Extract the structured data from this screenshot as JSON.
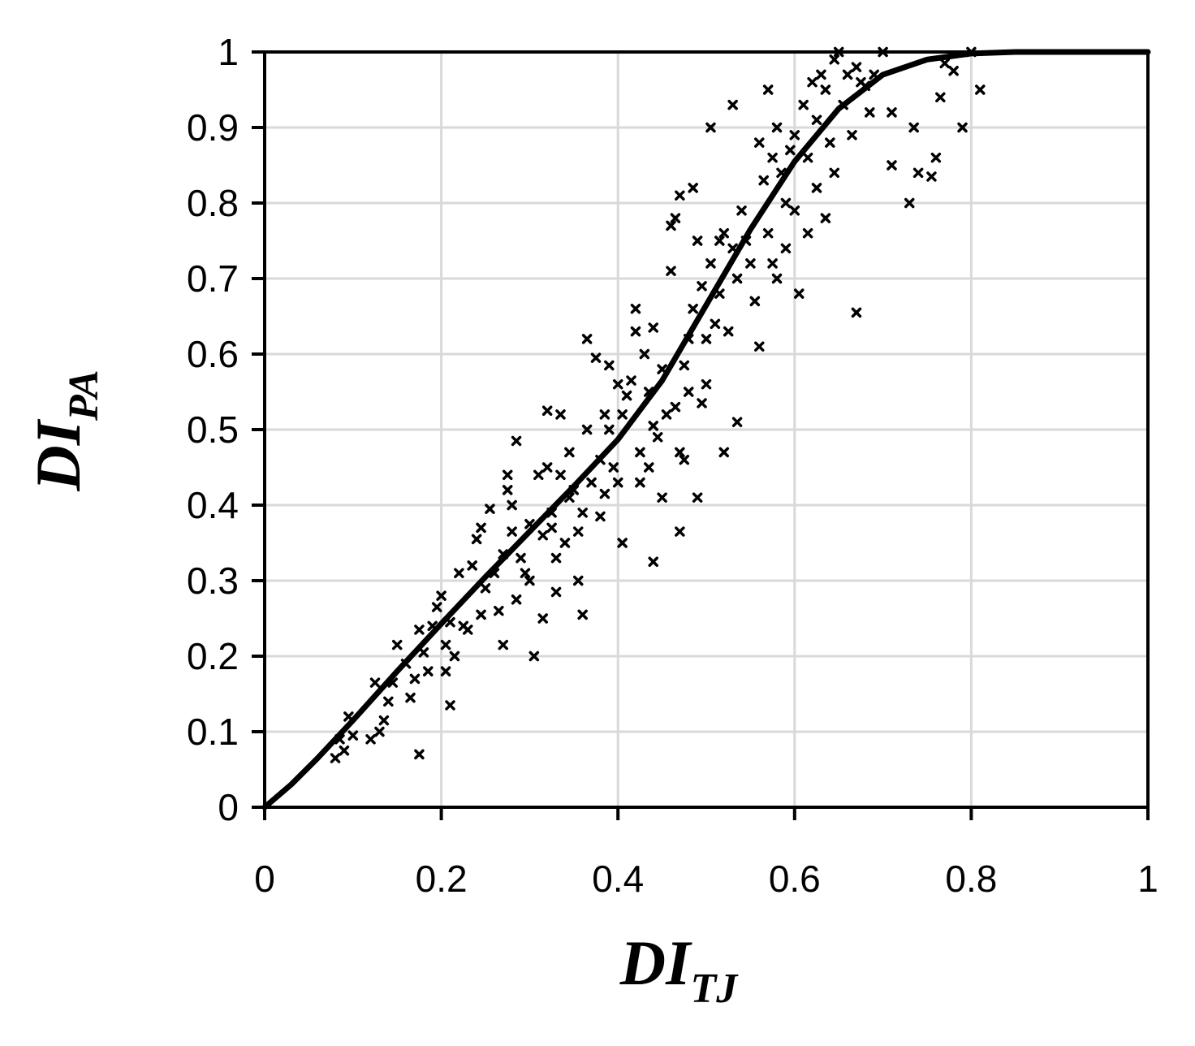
{
  "chart_data": {
    "type": "scatter",
    "xlabel": {
      "main": "DI",
      "sub": "TJ"
    },
    "ylabel": {
      "main": "DI",
      "sub": "PA"
    },
    "xlim": [
      0,
      1
    ],
    "ylim": [
      0,
      1
    ],
    "x_ticks": [
      "0",
      "0.2",
      "0.4",
      "0.6",
      "0.8",
      "1"
    ],
    "y_ticks": [
      "0",
      "0.1",
      "0.2",
      "0.3",
      "0.4",
      "0.5",
      "0.6",
      "0.7",
      "0.8",
      "0.9",
      "1"
    ],
    "grid": true,
    "marker": "x",
    "colors": {
      "points": "#000000",
      "curve": "#000000",
      "grid": "#d9d9d9"
    },
    "curve": {
      "x": [
        0,
        0.03,
        0.06,
        0.1,
        0.15,
        0.2,
        0.25,
        0.3,
        0.35,
        0.4,
        0.45,
        0.5,
        0.55,
        0.6,
        0.65,
        0.7,
        0.75,
        0.8,
        0.85,
        0.9,
        1.0
      ],
      "y": [
        0,
        0.03,
        0.065,
        0.115,
        0.18,
        0.243,
        0.305,
        0.365,
        0.425,
        0.487,
        0.565,
        0.665,
        0.765,
        0.855,
        0.925,
        0.97,
        0.99,
        0.998,
        1.0,
        1.0,
        1.0
      ]
    },
    "points": [
      [
        0.08,
        0.065
      ],
      [
        0.085,
        0.09
      ],
      [
        0.09,
        0.075
      ],
      [
        0.095,
        0.12
      ],
      [
        0.1,
        0.095
      ],
      [
        0.12,
        0.09
      ],
      [
        0.125,
        0.165
      ],
      [
        0.13,
        0.1
      ],
      [
        0.135,
        0.115
      ],
      [
        0.14,
        0.14
      ],
      [
        0.145,
        0.165
      ],
      [
        0.15,
        0.215
      ],
      [
        0.16,
        0.19
      ],
      [
        0.165,
        0.145
      ],
      [
        0.17,
        0.17
      ],
      [
        0.175,
        0.235
      ],
      [
        0.175,
        0.07
      ],
      [
        0.18,
        0.205
      ],
      [
        0.185,
        0.18
      ],
      [
        0.19,
        0.24
      ],
      [
        0.195,
        0.265
      ],
      [
        0.2,
        0.28
      ],
      [
        0.205,
        0.18
      ],
      [
        0.205,
        0.215
      ],
      [
        0.21,
        0.245
      ],
      [
        0.21,
        0.135
      ],
      [
        0.215,
        0.2
      ],
      [
        0.22,
        0.31
      ],
      [
        0.225,
        0.24
      ],
      [
        0.23,
        0.235
      ],
      [
        0.235,
        0.32
      ],
      [
        0.24,
        0.355
      ],
      [
        0.245,
        0.255
      ],
      [
        0.245,
        0.37
      ],
      [
        0.25,
        0.29
      ],
      [
        0.255,
        0.395
      ],
      [
        0.26,
        0.31
      ],
      [
        0.265,
        0.26
      ],
      [
        0.27,
        0.335
      ],
      [
        0.27,
        0.215
      ],
      [
        0.275,
        0.42
      ],
      [
        0.275,
        0.44
      ],
      [
        0.28,
        0.365
      ],
      [
        0.28,
        0.4
      ],
      [
        0.285,
        0.275
      ],
      [
        0.285,
        0.485
      ],
      [
        0.29,
        0.33
      ],
      [
        0.295,
        0.31
      ],
      [
        0.3,
        0.375
      ],
      [
        0.3,
        0.3
      ],
      [
        0.305,
        0.2
      ],
      [
        0.31,
        0.44
      ],
      [
        0.315,
        0.36
      ],
      [
        0.315,
        0.25
      ],
      [
        0.32,
        0.525
      ],
      [
        0.32,
        0.45
      ],
      [
        0.325,
        0.39
      ],
      [
        0.325,
        0.37
      ],
      [
        0.33,
        0.33
      ],
      [
        0.33,
        0.285
      ],
      [
        0.335,
        0.44
      ],
      [
        0.335,
        0.52
      ],
      [
        0.34,
        0.35
      ],
      [
        0.345,
        0.41
      ],
      [
        0.345,
        0.47
      ],
      [
        0.35,
        0.42
      ],
      [
        0.355,
        0.3
      ],
      [
        0.355,
        0.365
      ],
      [
        0.36,
        0.255
      ],
      [
        0.36,
        0.39
      ],
      [
        0.365,
        0.5
      ],
      [
        0.365,
        0.62
      ],
      [
        0.37,
        0.43
      ],
      [
        0.375,
        0.595
      ],
      [
        0.38,
        0.385
      ],
      [
        0.38,
        0.46
      ],
      [
        0.385,
        0.52
      ],
      [
        0.385,
        0.415
      ],
      [
        0.39,
        0.585
      ],
      [
        0.39,
        0.5
      ],
      [
        0.395,
        0.45
      ],
      [
        0.4,
        0.56
      ],
      [
        0.4,
        0.43
      ],
      [
        0.405,
        0.35
      ],
      [
        0.405,
        0.52
      ],
      [
        0.41,
        0.545
      ],
      [
        0.415,
        0.565
      ],
      [
        0.42,
        0.66
      ],
      [
        0.42,
        0.63
      ],
      [
        0.425,
        0.43
      ],
      [
        0.425,
        0.47
      ],
      [
        0.43,
        0.6
      ],
      [
        0.435,
        0.55
      ],
      [
        0.435,
        0.45
      ],
      [
        0.44,
        0.505
      ],
      [
        0.44,
        0.635
      ],
      [
        0.44,
        0.325
      ],
      [
        0.445,
        0.49
      ],
      [
        0.45,
        0.41
      ],
      [
        0.45,
        0.58
      ],
      [
        0.455,
        0.52
      ],
      [
        0.46,
        0.71
      ],
      [
        0.46,
        0.77
      ],
      [
        0.465,
        0.78
      ],
      [
        0.465,
        0.53
      ],
      [
        0.47,
        0.81
      ],
      [
        0.47,
        0.47
      ],
      [
        0.47,
        0.365
      ],
      [
        0.475,
        0.585
      ],
      [
        0.475,
        0.46
      ],
      [
        0.48,
        0.55
      ],
      [
        0.48,
        0.62
      ],
      [
        0.485,
        0.66
      ],
      [
        0.485,
        0.82
      ],
      [
        0.49,
        0.75
      ],
      [
        0.49,
        0.41
      ],
      [
        0.495,
        0.69
      ],
      [
        0.495,
        0.535
      ],
      [
        0.5,
        0.56
      ],
      [
        0.5,
        0.62
      ],
      [
        0.505,
        0.72
      ],
      [
        0.505,
        0.9
      ],
      [
        0.51,
        0.64
      ],
      [
        0.515,
        0.75
      ],
      [
        0.515,
        0.68
      ],
      [
        0.52,
        0.47
      ],
      [
        0.52,
        0.76
      ],
      [
        0.525,
        0.63
      ],
      [
        0.53,
        0.93
      ],
      [
        0.53,
        0.74
      ],
      [
        0.535,
        0.7
      ],
      [
        0.535,
        0.51
      ],
      [
        0.54,
        0.79
      ],
      [
        0.545,
        0.75
      ],
      [
        0.55,
        0.72
      ],
      [
        0.555,
        0.67
      ],
      [
        0.56,
        0.88
      ],
      [
        0.56,
        0.61
      ],
      [
        0.565,
        0.83
      ],
      [
        0.57,
        0.95
      ],
      [
        0.57,
        0.76
      ],
      [
        0.575,
        0.86
      ],
      [
        0.575,
        0.72
      ],
      [
        0.58,
        0.9
      ],
      [
        0.58,
        0.7
      ],
      [
        0.585,
        0.84
      ],
      [
        0.59,
        0.8
      ],
      [
        0.59,
        0.74
      ],
      [
        0.595,
        0.87
      ],
      [
        0.6,
        0.89
      ],
      [
        0.6,
        0.79
      ],
      [
        0.605,
        0.68
      ],
      [
        0.61,
        0.93
      ],
      [
        0.615,
        0.86
      ],
      [
        0.615,
        0.76
      ],
      [
        0.62,
        0.96
      ],
      [
        0.625,
        0.82
      ],
      [
        0.625,
        0.91
      ],
      [
        0.63,
        0.97
      ],
      [
        0.635,
        0.78
      ],
      [
        0.635,
        0.95
      ],
      [
        0.64,
        0.88
      ],
      [
        0.645,
        0.99
      ],
      [
        0.645,
        0.84
      ],
      [
        0.65,
        1.0
      ],
      [
        0.655,
        0.93
      ],
      [
        0.66,
        0.97
      ],
      [
        0.665,
        0.89
      ],
      [
        0.67,
        0.98
      ],
      [
        0.67,
        0.655
      ],
      [
        0.675,
        0.96
      ],
      [
        0.68,
        0.955
      ],
      [
        0.685,
        0.92
      ],
      [
        0.69,
        0.97
      ],
      [
        0.7,
        1.0
      ],
      [
        0.71,
        0.92
      ],
      [
        0.71,
        0.85
      ],
      [
        0.73,
        0.8
      ],
      [
        0.735,
        0.9
      ],
      [
        0.74,
        0.84
      ],
      [
        0.755,
        0.835
      ],
      [
        0.76,
        0.86
      ],
      [
        0.765,
        0.94
      ],
      [
        0.77,
        0.985
      ],
      [
        0.78,
        0.975
      ],
      [
        0.79,
        0.9
      ],
      [
        0.8,
        1.0
      ],
      [
        0.81,
        0.95
      ]
    ]
  }
}
